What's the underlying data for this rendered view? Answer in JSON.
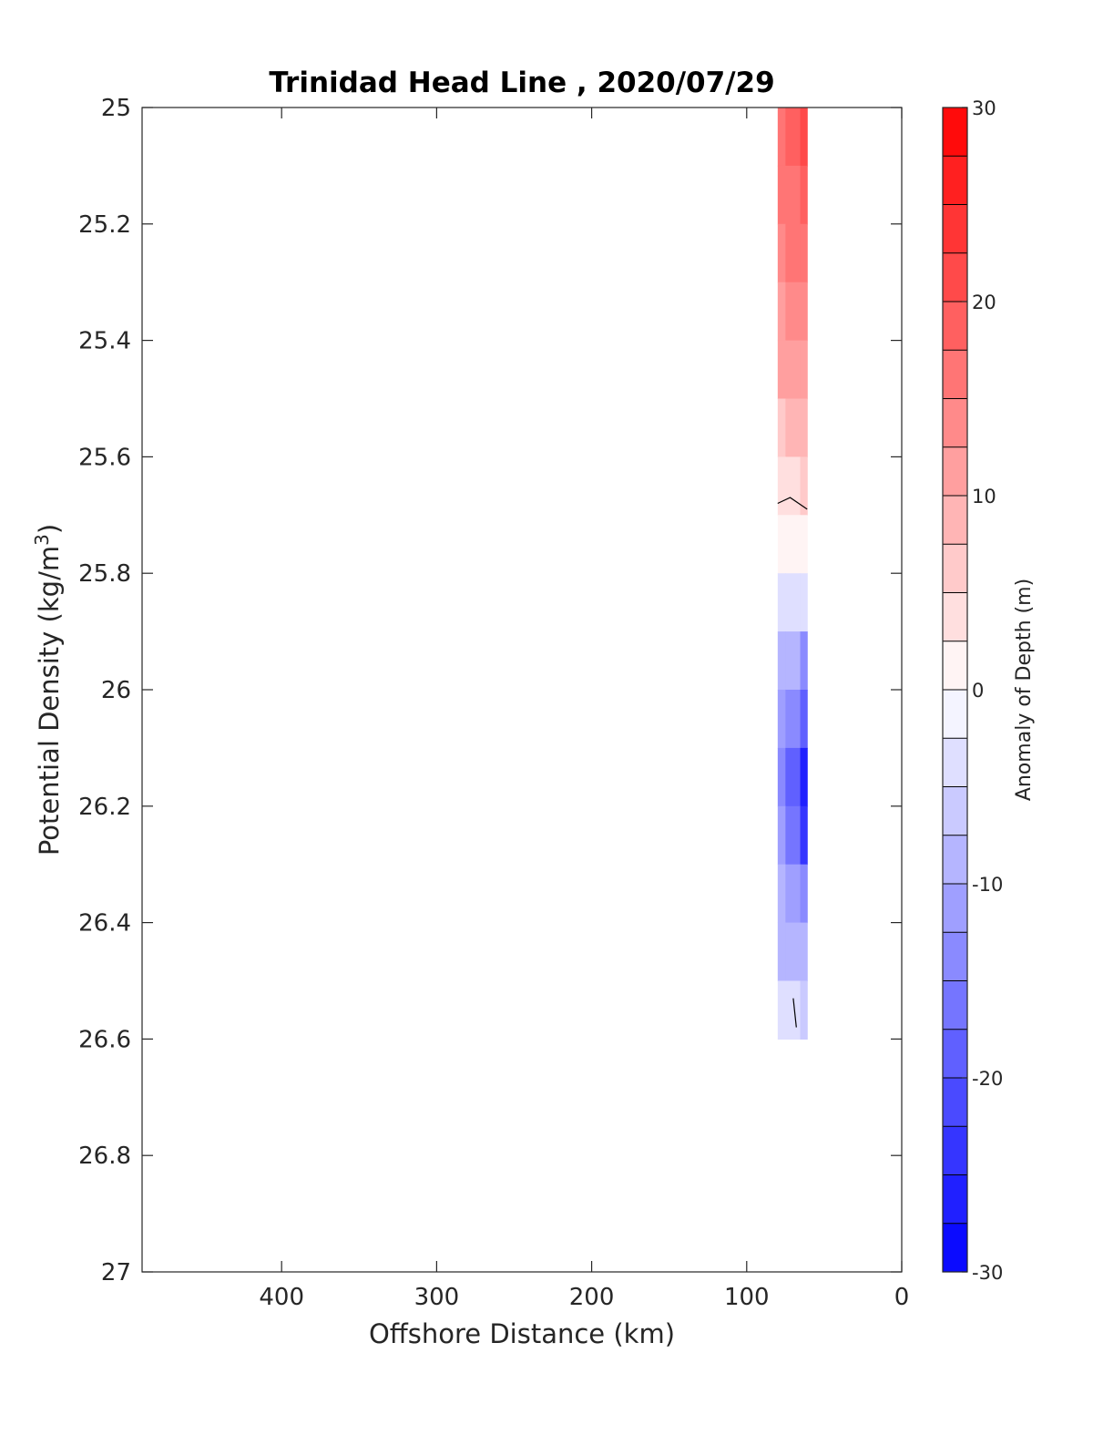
{
  "chart_data": {
    "type": "heatmap",
    "title": "Trinidad Head Line , 2020/07/29",
    "xlabel": "Offshore Distance (km)",
    "ylabel_main": "Potential Density (kg/m",
    "ylabel_sup": "3",
    "ylabel_end": ")",
    "colorbar_label": "Anomaly of Depth (m)",
    "xlim": [
      490,
      0
    ],
    "x_reversed": true,
    "ylim": [
      25,
      27
    ],
    "y_reversed": true,
    "xticks": [
      400,
      300,
      200,
      100,
      0
    ],
    "xtick_labels": [
      "400",
      "300",
      "200",
      "100",
      "0"
    ],
    "yticks": [
      25,
      25.2,
      25.4,
      25.6,
      25.8,
      26,
      26.2,
      26.4,
      26.6,
      26.8,
      27
    ],
    "ytick_labels": [
      "25",
      "25.2",
      "25.4",
      "25.6",
      "25.8",
      "26",
      "26.2",
      "26.4",
      "26.6",
      "26.8",
      "27"
    ],
    "colorbar_ticks": [
      30,
      20,
      10,
      0,
      -10,
      -20,
      -30
    ],
    "colorbar_tick_labels": [
      "30",
      "20",
      "10",
      "0",
      "-10",
      "-20",
      "-30"
    ],
    "colorbar_levels": [
      -30,
      -27.5,
      -25,
      -22.5,
      -20,
      -17.5,
      -15,
      -12.5,
      -10,
      -7.5,
      -5,
      -2.5,
      0,
      2.5,
      5,
      7.5,
      10,
      12.5,
      15,
      17.5,
      20,
      22.5,
      25,
      27.5,
      30
    ],
    "colormap": "blue-white-red",
    "colors": {
      "negative_max": "#0000ff",
      "zero": "#ffffff",
      "positive_max": "#ff0000"
    },
    "grid": false,
    "data_columns_km": [
      80,
      70,
      61
    ],
    "data": [
      {
        "density": 25.0,
        "anomaly": [
          16,
          18,
          20
        ]
      },
      {
        "density": 25.1,
        "anomaly": [
          15,
          17,
          18
        ]
      },
      {
        "density": 25.2,
        "anomaly": [
          13,
          15,
          16
        ]
      },
      {
        "density": 25.3,
        "anomaly": [
          12,
          13,
          14
        ]
      },
      {
        "density": 25.4,
        "anomaly": [
          10,
          11,
          12
        ]
      },
      {
        "density": 25.5,
        "anomaly": [
          7,
          8,
          9
        ]
      },
      {
        "density": 25.6,
        "anomaly": [
          4,
          4,
          5
        ]
      },
      {
        "density": 25.7,
        "anomaly": [
          0,
          0,
          0
        ]
      },
      {
        "density": 25.8,
        "anomaly": [
          -4,
          -5,
          -5
        ]
      },
      {
        "density": 25.9,
        "anomaly": [
          -8,
          -10,
          -13
        ]
      },
      {
        "density": 26.0,
        "anomaly": [
          -11,
          -15,
          -20
        ]
      },
      {
        "density": 26.1,
        "anomaly": [
          -13,
          -20,
          -26
        ]
      },
      {
        "density": 26.2,
        "anomaly": [
          -12,
          -17,
          -24
        ]
      },
      {
        "density": 26.3,
        "anomaly": [
          -10,
          -12,
          -15
        ]
      },
      {
        "density": 26.4,
        "anomaly": [
          -9,
          -9,
          -10
        ]
      },
      {
        "density": 26.5,
        "anomaly": [
          -3,
          -5,
          -6
        ]
      }
    ],
    "zero_contours": [
      {
        "points": [
          [
            80,
            25.68
          ],
          [
            72,
            25.67
          ],
          [
            61,
            25.69
          ]
        ]
      },
      {
        "points": [
          [
            70,
            26.53
          ],
          [
            68,
            26.58
          ]
        ]
      }
    ]
  }
}
